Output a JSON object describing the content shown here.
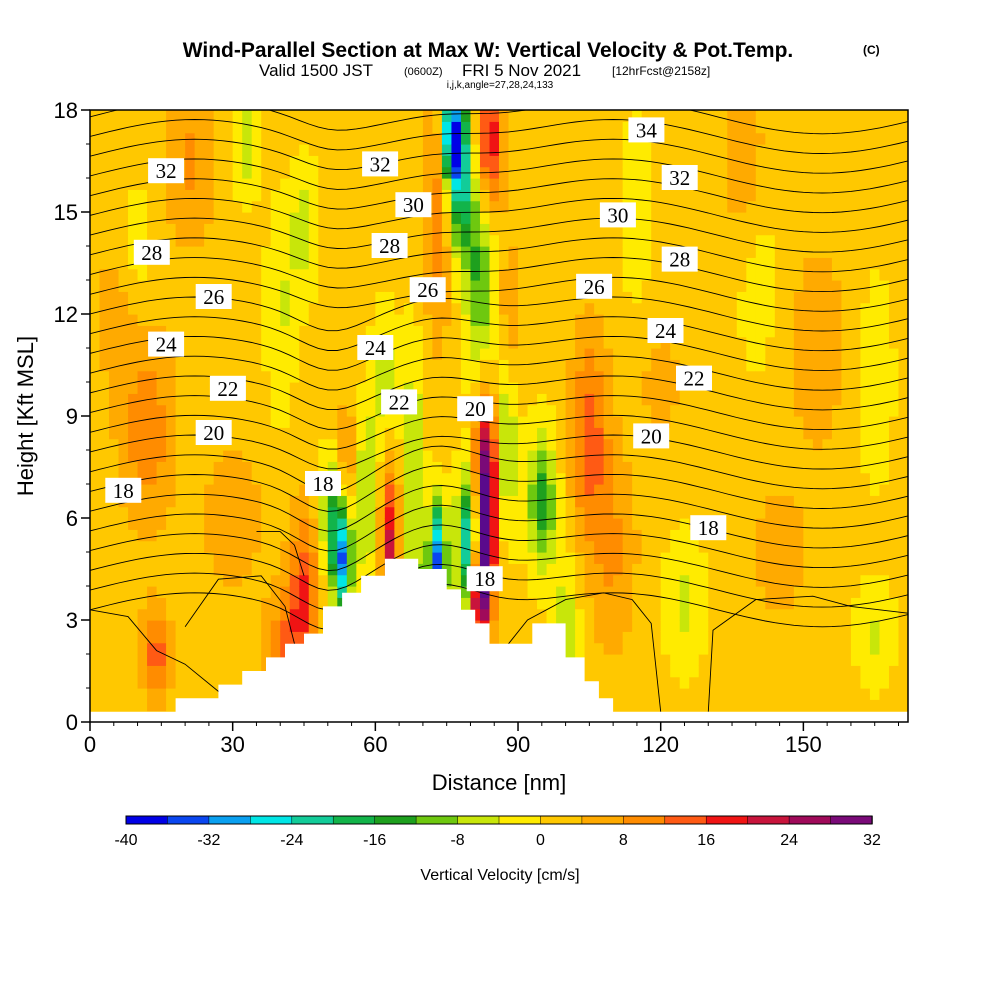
{
  "header": {
    "title": "Wind-Parallel Section at Max W: Vertical Velocity & Pot.Temp.",
    "copyright": "(C)",
    "valid_prefix": "Valid 1500 JST",
    "utc": "(0600Z)",
    "valid_date": "FRI 5 Nov 2021",
    "forecast": "[12hrFcst@2158z]",
    "indices": "i,j,k,angle=27,28,24,133"
  },
  "chart_data": {
    "type": "heatmap",
    "title": "Wind-Parallel Section at Max W: Vertical Velocity & Pot.Temp.",
    "xlabel": "Distance [nm]",
    "ylabel": "Height [Kft MSL]",
    "xlim": [
      0,
      172
    ],
    "ylim": [
      0,
      18
    ],
    "x_ticks": [
      0,
      30,
      60,
      90,
      120,
      150
    ],
    "y_ticks": [
      0,
      3,
      6,
      9,
      12,
      15,
      18
    ],
    "colorbar": {
      "label": "Vertical Velocity [cm/s]",
      "tick_labels": [
        "-40",
        "-32",
        "-24",
        "-16",
        "-8",
        "0",
        "8",
        "16",
        "24",
        "32"
      ],
      "tick_values": [
        -40,
        -32,
        -24,
        -16,
        -8,
        0,
        8,
        16,
        24,
        32
      ],
      "colors": [
        "#0000e6",
        "#0a46f0",
        "#0aa0f0",
        "#00e6e6",
        "#12cc99",
        "#12b44a",
        "#1ea01e",
        "#6ec80f",
        "#c8e60a",
        "#ffeb00",
        "#ffc800",
        "#ffaa00",
        "#ff8c00",
        "#ff5a14",
        "#f01414",
        "#c8143c",
        "#a00a5a",
        "#7a0a78",
        "#5a0a8c"
      ],
      "level_edges": [
        -40,
        -36,
        -32,
        -28,
        -24,
        -20,
        -16,
        -12,
        -8,
        -4,
        0,
        4,
        8,
        12,
        16,
        20,
        24,
        28,
        32
      ]
    },
    "terrain_profile": [
      [
        0,
        0.3
      ],
      [
        18,
        0.3
      ],
      [
        18,
        0.7
      ],
      [
        27,
        0.7
      ],
      [
        27,
        1.1
      ],
      [
        32,
        1.1
      ],
      [
        32,
        1.5
      ],
      [
        37,
        1.5
      ],
      [
        37,
        1.9
      ],
      [
        41,
        1.9
      ],
      [
        41,
        2.3
      ],
      [
        45,
        2.3
      ],
      [
        45,
        2.6
      ],
      [
        49,
        2.6
      ],
      [
        49,
        3.4
      ],
      [
        53,
        3.4
      ],
      [
        53,
        3.8
      ],
      [
        57,
        3.8
      ],
      [
        57,
        4.3
      ],
      [
        62,
        4.3
      ],
      [
        62,
        4.8
      ],
      [
        69,
        4.8
      ],
      [
        69,
        4.5
      ],
      [
        75,
        4.5
      ],
      [
        75,
        3.9
      ],
      [
        78,
        3.9
      ],
      [
        78,
        3.3
      ],
      [
        81,
        3.3
      ],
      [
        81,
        2.9
      ],
      [
        84,
        2.9
      ],
      [
        84,
        2.3
      ],
      [
        93,
        2.3
      ],
      [
        93,
        2.9
      ],
      [
        100,
        2.9
      ],
      [
        100,
        1.9
      ],
      [
        104,
        1.9
      ],
      [
        104,
        1.2
      ],
      [
        107,
        1.2
      ],
      [
        107,
        0.7
      ],
      [
        110,
        0.7
      ],
      [
        110,
        0.3
      ],
      [
        172,
        0.3
      ]
    ],
    "potential_temperature_labels": [
      {
        "value": "32",
        "x": 16,
        "y": 16.2
      },
      {
        "value": "32",
        "x": 61,
        "y": 16.4
      },
      {
        "value": "34",
        "x": 117,
        "y": 17.4
      },
      {
        "value": "32",
        "x": 124,
        "y": 16.0
      },
      {
        "value": "30",
        "x": 68,
        "y": 15.2
      },
      {
        "value": "30",
        "x": 111,
        "y": 14.9
      },
      {
        "value": "28",
        "x": 13,
        "y": 13.8
      },
      {
        "value": "28",
        "x": 63,
        "y": 14.0
      },
      {
        "value": "28",
        "x": 124,
        "y": 13.6
      },
      {
        "value": "26",
        "x": 26,
        "y": 12.5
      },
      {
        "value": "26",
        "x": 71,
        "y": 12.7
      },
      {
        "value": "26",
        "x": 106,
        "y": 12.8
      },
      {
        "value": "24",
        "x": 16,
        "y": 11.1
      },
      {
        "value": "24",
        "x": 60,
        "y": 11.0
      },
      {
        "value": "24",
        "x": 121,
        "y": 11.5
      },
      {
        "value": "22",
        "x": 29,
        "y": 9.8
      },
      {
        "value": "22",
        "x": 65,
        "y": 9.4
      },
      {
        "value": "22",
        "x": 127,
        "y": 10.1
      },
      {
        "value": "20",
        "x": 26,
        "y": 8.5
      },
      {
        "value": "20",
        "x": 81,
        "y": 9.2
      },
      {
        "value": "20",
        "x": 118,
        "y": 8.4
      },
      {
        "value": "18",
        "x": 7,
        "y": 6.8
      },
      {
        "value": "18",
        "x": 49,
        "y": 7.0
      },
      {
        "value": "18",
        "x": 83,
        "y": 4.2
      },
      {
        "value": "18",
        "x": 130,
        "y": 5.7
      }
    ]
  }
}
